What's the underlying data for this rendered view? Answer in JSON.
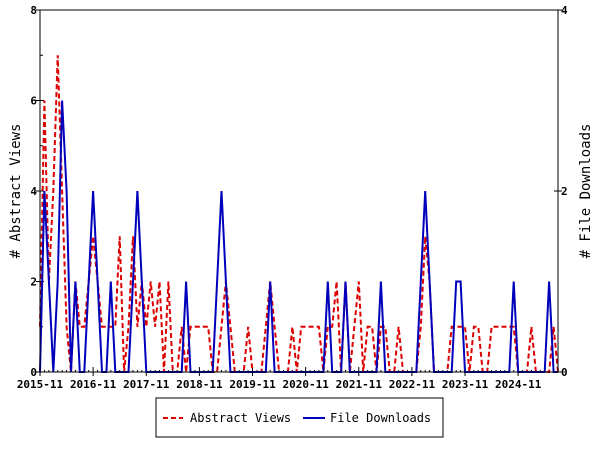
{
  "chart_data": {
    "type": "line",
    "title": "",
    "xlabel": "",
    "ylabel": "# Abstract Views",
    "y2label": "# File Downloads",
    "ylim": [
      0,
      8
    ],
    "y2lim": [
      0,
      4
    ],
    "yticks": [
      "0",
      "2",
      "4",
      "6",
      "8"
    ],
    "y2ticks": [
      "0",
      "2",
      "4"
    ],
    "x_start": "2015-11",
    "x_unit": "month",
    "xticks": [
      "2015-11",
      "2016-11",
      "2017-11",
      "2018-11",
      "2019-11",
      "2020-11",
      "2021-11",
      "2022-11",
      "2023-11",
      "2024-11"
    ],
    "legend_position": "bottom",
    "series": [
      {
        "name": "Abstract Views",
        "axis": "left",
        "color": "#dd0000",
        "style": "dashed",
        "values": [
          1,
          6,
          2,
          4,
          7,
          4,
          1,
          0,
          2,
          1,
          1,
          2,
          3,
          2,
          1,
          1,
          1,
          1,
          3,
          0,
          1,
          3,
          1,
          2,
          1,
          2,
          1,
          2,
          0,
          2,
          0,
          0,
          1,
          0,
          1,
          1,
          1,
          1,
          1,
          0,
          0,
          1,
          2,
          1,
          0,
          0,
          0,
          1,
          0,
          0,
          0,
          1,
          2,
          1,
          0,
          0,
          0,
          1,
          0,
          1,
          1,
          1,
          1,
          1,
          0,
          1,
          1,
          2,
          0,
          2,
          0,
          1,
          2,
          0,
          1,
          1,
          0,
          1,
          1,
          0,
          0,
          1,
          0,
          0,
          0,
          0,
          1,
          3,
          2,
          0,
          0,
          0,
          0,
          1,
          1,
          1,
          1,
          0,
          1,
          1,
          0,
          0,
          1,
          1,
          1,
          1,
          1,
          1,
          0,
          0,
          0,
          1,
          0,
          0,
          0,
          0,
          1,
          0
        ]
      },
      {
        "name": "File Downloads",
        "axis": "right",
        "color": "#0000bb",
        "style": "solid",
        "values": [
          0,
          2,
          1,
          0,
          1,
          3,
          2,
          0,
          1,
          0,
          0,
          1,
          2,
          1,
          0,
          0,
          1,
          0,
          0,
          0,
          0,
          1,
          2,
          1,
          0,
          0,
          0,
          0,
          0,
          0,
          0,
          0,
          0,
          1,
          0,
          0,
          0,
          0,
          0,
          0,
          1,
          2,
          1,
          0,
          0,
          0,
          0,
          0,
          0,
          0,
          0,
          0,
          1,
          0,
          0,
          0,
          0,
          0,
          0,
          0,
          0,
          0,
          0,
          0,
          0,
          1,
          0,
          0,
          0,
          1,
          0,
          0,
          0,
          0,
          0,
          0,
          0,
          1,
          0,
          0,
          0,
          0,
          0,
          0,
          0,
          0,
          1,
          2,
          1,
          0,
          0,
          0,
          0,
          0,
          1,
          1,
          0,
          0,
          0,
          0,
          0,
          0,
          0,
          0,
          0,
          0,
          0,
          1,
          0,
          0,
          0,
          0,
          0,
          0,
          0,
          1,
          0,
          0
        ]
      }
    ]
  }
}
